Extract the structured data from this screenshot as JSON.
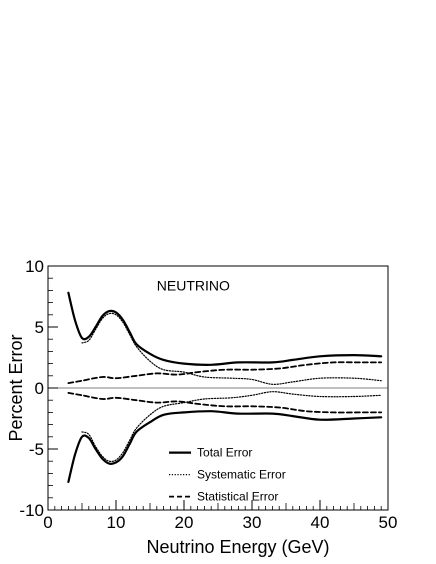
{
  "chart_data": {
    "type": "line",
    "annotation": "NEUTRINO",
    "xlabel": "Neutrino Energy (GeV)",
    "ylabel": "Percent Error",
    "xlim": [
      0,
      50
    ],
    "ylim": [
      -10,
      10
    ],
    "x_ticks": [
      "0",
      "10",
      "20",
      "30",
      "40",
      "50"
    ],
    "y_ticks": [
      "10",
      "5",
      "0",
      "-5",
      "-10"
    ],
    "grid": false,
    "legend_position": "bottom-center",
    "zero_line": true,
    "series": [
      {
        "name": "Total Error",
        "style": "solid",
        "color": "#000000",
        "points": [
          [
            3,
            7.8
          ],
          [
            4,
            5.5
          ],
          [
            5,
            4.1
          ],
          [
            6,
            4.2
          ],
          [
            7,
            5.0
          ],
          [
            8,
            5.9
          ],
          [
            9,
            6.3
          ],
          [
            10,
            6.2
          ],
          [
            11,
            5.6
          ],
          [
            12,
            4.6
          ],
          [
            13,
            3.6
          ],
          [
            15,
            2.8
          ],
          [
            17,
            2.3
          ],
          [
            20,
            2.0
          ],
          [
            24,
            1.9
          ],
          [
            28,
            2.1
          ],
          [
            33,
            2.1
          ],
          [
            36,
            2.3
          ],
          [
            40,
            2.6
          ],
          [
            45,
            2.7
          ],
          [
            49,
            2.6
          ]
        ]
      },
      {
        "name": "Total Error (negative)",
        "style": "solid",
        "color": "#000000",
        "points": [
          [
            3,
            -7.7
          ],
          [
            4,
            -5.4
          ],
          [
            5,
            -4.0
          ],
          [
            6,
            -4.1
          ],
          [
            7,
            -5.0
          ],
          [
            8,
            -5.8
          ],
          [
            9,
            -6.2
          ],
          [
            10,
            -6.1
          ],
          [
            11,
            -5.6
          ],
          [
            12,
            -4.6
          ],
          [
            13,
            -3.6
          ],
          [
            15,
            -2.8
          ],
          [
            17,
            -2.2
          ],
          [
            20,
            -2.0
          ],
          [
            24,
            -1.9
          ],
          [
            28,
            -2.1
          ],
          [
            33,
            -2.1
          ],
          [
            36,
            -2.3
          ],
          [
            40,
            -2.6
          ],
          [
            45,
            -2.5
          ],
          [
            49,
            -2.4
          ]
        ]
      },
      {
        "name": "Systematic Error",
        "style": "dotted",
        "color": "#000000",
        "points": [
          [
            5,
            3.7
          ],
          [
            6,
            3.9
          ],
          [
            7,
            4.8
          ],
          [
            8,
            5.7
          ],
          [
            9,
            6.1
          ],
          [
            10,
            6.0
          ],
          [
            11,
            5.4
          ],
          [
            12,
            4.4
          ],
          [
            13,
            3.4
          ],
          [
            15,
            2.2
          ],
          [
            17,
            1.5
          ],
          [
            20,
            1.3
          ],
          [
            23,
            0.9
          ],
          [
            27,
            0.8
          ],
          [
            30,
            0.7
          ],
          [
            33,
            0.3
          ],
          [
            36,
            0.5
          ],
          [
            40,
            0.8
          ],
          [
            45,
            0.8
          ],
          [
            49,
            0.6
          ]
        ]
      },
      {
        "name": "Systematic Error (negative)",
        "style": "dotted",
        "color": "#000000",
        "points": [
          [
            5,
            -3.6
          ],
          [
            6,
            -3.8
          ],
          [
            7,
            -4.8
          ],
          [
            8,
            -5.6
          ],
          [
            9,
            -6.0
          ],
          [
            10,
            -5.9
          ],
          [
            11,
            -5.3
          ],
          [
            12,
            -4.3
          ],
          [
            13,
            -3.3
          ],
          [
            15,
            -2.2
          ],
          [
            17,
            -1.5
          ],
          [
            20,
            -1.2
          ],
          [
            23,
            -0.9
          ],
          [
            27,
            -0.8
          ],
          [
            30,
            -0.6
          ],
          [
            33,
            -0.3
          ],
          [
            36,
            -0.5
          ],
          [
            40,
            -0.7
          ],
          [
            45,
            -0.7
          ],
          [
            49,
            -0.6
          ]
        ]
      },
      {
        "name": "Statistical Error",
        "style": "dashed",
        "color": "#000000",
        "points": [
          [
            3,
            0.4
          ],
          [
            5,
            0.6
          ],
          [
            8,
            0.9
          ],
          [
            10,
            0.8
          ],
          [
            13,
            1.0
          ],
          [
            16,
            1.2
          ],
          [
            19,
            1.1
          ],
          [
            22,
            1.3
          ],
          [
            26,
            1.5
          ],
          [
            30,
            1.5
          ],
          [
            34,
            1.6
          ],
          [
            38,
            1.9
          ],
          [
            42,
            2.1
          ],
          [
            46,
            2.1
          ],
          [
            49,
            2.1
          ]
        ]
      },
      {
        "name": "Statistical Error (negative)",
        "style": "dashed",
        "color": "#000000",
        "points": [
          [
            3,
            -0.4
          ],
          [
            5,
            -0.6
          ],
          [
            8,
            -0.9
          ],
          [
            10,
            -0.8
          ],
          [
            13,
            -1.0
          ],
          [
            16,
            -1.2
          ],
          [
            19,
            -1.1
          ],
          [
            22,
            -1.3
          ],
          [
            26,
            -1.5
          ],
          [
            30,
            -1.5
          ],
          [
            34,
            -1.6
          ],
          [
            38,
            -1.9
          ],
          [
            42,
            -2.0
          ],
          [
            46,
            -2.0
          ],
          [
            49,
            -2.0
          ]
        ]
      }
    ],
    "legend": [
      {
        "label": "Total Error",
        "style": "solid"
      },
      {
        "label": "Systematic Error",
        "style": "dotted"
      },
      {
        "label": "Statistical Error",
        "style": "dashed"
      }
    ]
  }
}
